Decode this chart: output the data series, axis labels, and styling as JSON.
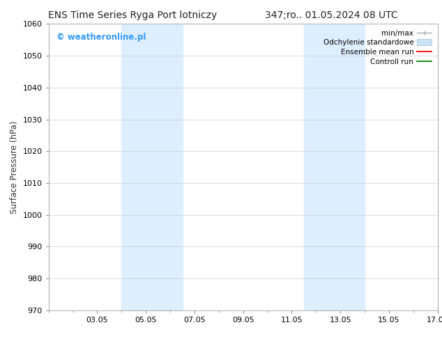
{
  "title_left": "ENS Time Series Ryga Port lotniczy",
  "title_right": "347;ro.. 01.05.2024 08 UTC",
  "ylabel": "Surface Pressure (hPa)",
  "ylim": [
    970,
    1060
  ],
  "yticks": [
    970,
    980,
    990,
    1000,
    1010,
    1020,
    1030,
    1040,
    1050,
    1060
  ],
  "xlim": [
    0,
    16
  ],
  "xtick_labels": [
    "03.05",
    "05.05",
    "07.05",
    "09.05",
    "11.05",
    "13.05",
    "15.05",
    "17.05"
  ],
  "xtick_positions": [
    2,
    4,
    6,
    8,
    10,
    12,
    14,
    16
  ],
  "shaded_bands": [
    {
      "x_start": 3,
      "x_end": 5.5,
      "color": "#ddeeff"
    },
    {
      "x_start": 10.5,
      "x_end": 13,
      "color": "#ddeeff"
    }
  ],
  "watermark_text": "© weatheronline.pl",
  "watermark_color": "#3399ff",
  "legend_items": [
    {
      "label": "min/max",
      "color": "#aaaaaa"
    },
    {
      "label": "Odchylenie standardowe",
      "color": "#cce4f5"
    },
    {
      "label": "Ensemble mean run",
      "color": "red"
    },
    {
      "label": "Controll run",
      "color": "green"
    }
  ],
  "bg_color": "#ffffff",
  "grid_color": "#cccccc"
}
